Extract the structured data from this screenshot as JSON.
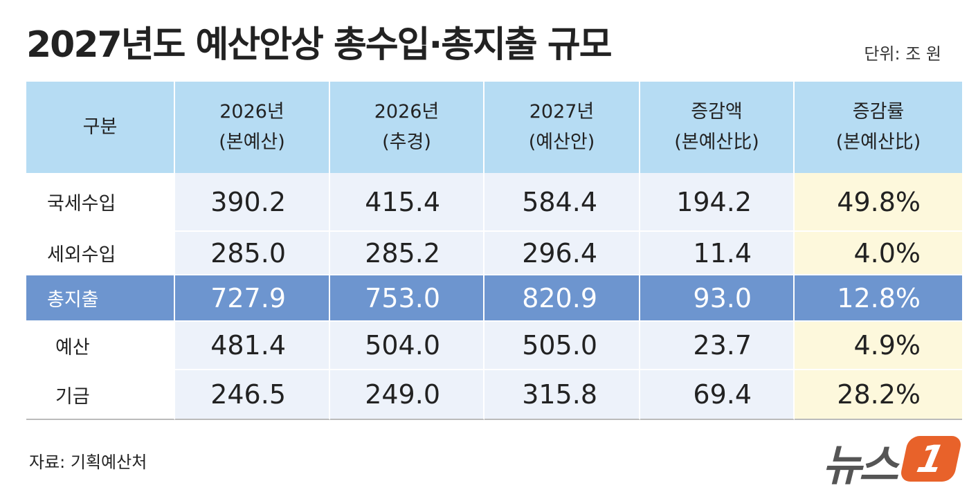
{
  "title": "2027년도 예산안상 총수입·총지출 규모",
  "unit": "단위: 조 원",
  "table": {
    "header": [
      [
        "구분"
      ],
      [
        "2026년",
        "(본예산)"
      ],
      [
        "2026년",
        "(추경)"
      ],
      [
        "2027년",
        "(예산안)"
      ],
      [
        "증감액",
        "(본예산比)"
      ],
      [
        "증감률",
        "(본예산比)"
      ]
    ],
    "rows": [
      [
        "국세수입",
        "390.2",
        "415.4",
        "584.4",
        "194.2",
        "49.8%"
      ],
      [
        "세외수입",
        "285.0",
        "285.2",
        "296.4",
        "11.4",
        "4.0%"
      ],
      [
        "총지출",
        "727.9",
        "753.0",
        "820.9",
        "93.0",
        "12.8%"
      ],
      [
        "예산",
        "481.4",
        "504.0",
        "505.0",
        "23.7",
        "4.9%"
      ],
      [
        "기금",
        "246.5",
        "249.0",
        "315.8",
        "69.4",
        "28.2%"
      ]
    ]
  },
  "source": "자료: 기획예산처",
  "logo": {
    "text": "뉴스",
    "mark": "1"
  }
}
